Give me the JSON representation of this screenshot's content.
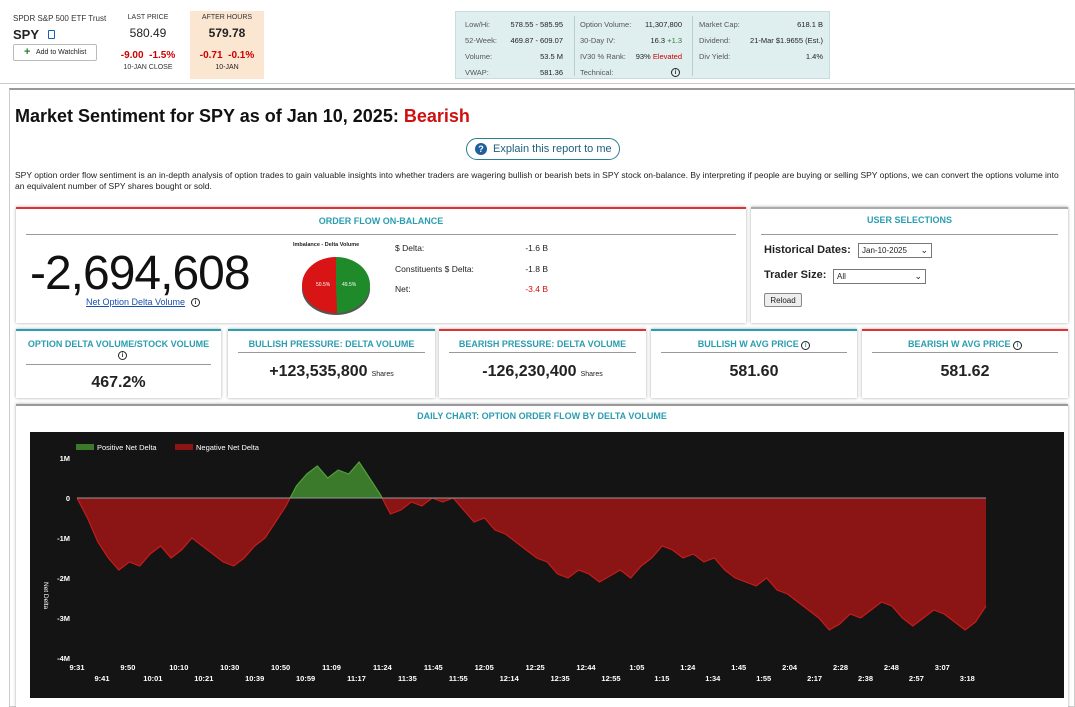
{
  "ticker": {
    "name": "SPDR S&P 500 ETF Trust",
    "symbol": "SPY",
    "watchlist": "Add to Watchlist"
  },
  "last": {
    "label": "LAST PRICE",
    "value": "580.49",
    "change": "-9.00",
    "change_pct": "-1.5%",
    "sub": "10-JAN CLOSE"
  },
  "after": {
    "label": "AFTER HOURS",
    "value": "579.78",
    "change": "-0.71",
    "change_pct": "-0.1%",
    "sub": "10-JAN"
  },
  "stats": {
    "col1": [
      {
        "k": "Low/Hi:",
        "v": "578.55 - 585.95"
      },
      {
        "k": "52-Week:",
        "v": "469.87 - 609.07"
      },
      {
        "k": "Volume:",
        "v": "53.5 M"
      },
      {
        "k": "VWAP:",
        "v": "581.36"
      }
    ],
    "col2": [
      {
        "k": "Option Volume:",
        "v": "11,307,800"
      },
      {
        "k": "30-Day IV:",
        "v": "16.3",
        "v2": "+1.3"
      },
      {
        "k": "IV30 % Rank:",
        "v": "93%",
        "v2": "Elevated"
      },
      {
        "k": "Technical:",
        "v": ""
      }
    ],
    "col3": [
      {
        "k": "Market Cap:",
        "v": "618.1 B"
      },
      {
        "k": "Dividend:",
        "v": "21-Mar $1.9655 (Est.)"
      },
      {
        "k": "Div Yield:",
        "v": "1.4%"
      }
    ]
  },
  "title": {
    "prefix": "Market Sentiment for SPY as of Jan 10, 2025:",
    "sentiment": "Bearish"
  },
  "explain": "Explain this report to me",
  "description": "SPY option order flow sentiment is an in-depth analysis of option trades to gain valuable insights into whether traders are wagering bullish or bearish bets in SPY stock on-balance. By interpreting if people are buying or selling SPY options, we can convert the options volume into an equivalent number of SPY shares bought or sold.",
  "ofb": {
    "header": "ORDER FLOW ON-BALANCE",
    "value": "-2,694,608",
    "link": "Net Option Delta Volume",
    "pie_title": "Imbalance - Delta Volume",
    "pie": {
      "red": 50.5,
      "green": 49.5,
      "red_label": "50.5%",
      "green_label": "49.5%",
      "red_color": "#d81414",
      "green_color": "#1f8a2a"
    },
    "rows": [
      {
        "k": "$ Delta:",
        "v": "-1.6 B"
      },
      {
        "k": "Constituents $ Delta:",
        "v": "-1.8 B"
      },
      {
        "k": "Net:",
        "v": "-3.4 B"
      }
    ]
  },
  "user": {
    "header": "USER SELECTIONS",
    "dates_label": "Historical Dates:",
    "dates_value": "Jan-10-2025",
    "trader_label": "Trader Size:",
    "trader_value": "All",
    "reload": "Reload"
  },
  "metrics": [
    {
      "header": "OPTION DELTA VOLUME/STOCK VOLUME",
      "value": "467.2%",
      "unit": ""
    },
    {
      "header": "BULLISH PRESSURE: DELTA VOLUME",
      "value": "+123,535,800",
      "unit": "Shares"
    },
    {
      "header": "BEARISH PRESSURE: DELTA VOLUME",
      "value": "-126,230,400",
      "unit": "Shares"
    },
    {
      "header": "BULLISH W AVG PRICE",
      "value": "581.60",
      "unit": ""
    },
    {
      "header": "BEARISH W AVG PRICE",
      "value": "581.62",
      "unit": ""
    }
  ],
  "chart_header": "DAILY CHART: OPTION ORDER FLOW BY DELTA VOLUME",
  "chart_data": {
    "type": "area",
    "title": "",
    "ylabel": "Net Delta",
    "ylim": [
      -4000000,
      1000000
    ],
    "yticks": [
      {
        "v": 1000000,
        "l": "1M"
      },
      {
        "v": 0,
        "l": "0"
      },
      {
        "v": -1000000,
        "l": "-1M"
      },
      {
        "v": -2000000,
        "l": "-2M"
      },
      {
        "v": -3000000,
        "l": "-3M"
      },
      {
        "v": -4000000,
        "l": "-4M"
      }
    ],
    "xticks_top": [
      "9:31",
      "9:50",
      "10:10",
      "10:30",
      "10:50",
      "11:09",
      "11:24",
      "11:45",
      "12:05",
      "12:25",
      "12:44",
      "1:05",
      "1:24",
      "1:45",
      "2:04",
      "2:28",
      "2:48",
      "3:07"
    ],
    "xticks_bottom": [
      "9:41",
      "10:01",
      "10:21",
      "10:39",
      "10:59",
      "11:17",
      "11:35",
      "11:55",
      "12:14",
      "12:35",
      "12:55",
      "1:15",
      "1:34",
      "1:55",
      "2:17",
      "2:38",
      "2:57",
      "3:18"
    ],
    "series": [
      {
        "name": "Positive Net Delta",
        "color": "#3a7a2a"
      },
      {
        "name": "Negative Net Delta",
        "color": "#8b1414"
      }
    ],
    "values": [
      0,
      -500000,
      -1100000,
      -1500000,
      -1800000,
      -1600000,
      -1700000,
      -1400000,
      -1200000,
      -1500000,
      -1300000,
      -1000000,
      -1200000,
      -1400000,
      -1600000,
      -1700000,
      -1500000,
      -1200000,
      -1000000,
      -600000,
      -200000,
      300000,
      600000,
      800000,
      500000,
      700000,
      600000,
      900000,
      500000,
      100000,
      -400000,
      -300000,
      -100000,
      -200000,
      0,
      -100000,
      0,
      -300000,
      -600000,
      -500000,
      -800000,
      -900000,
      -1100000,
      -1300000,
      -1500000,
      -1600000,
      -1900000,
      -2000000,
      -1800000,
      -1900000,
      -2100000,
      -1950000,
      -1800000,
      -2000000,
      -1700000,
      -1500000,
      -1200000,
      -1300000,
      -1500000,
      -1400000,
      -1600000,
      -1500000,
      -1800000,
      -2000000,
      -2100000,
      -2200000,
      -2000000,
      -2300000,
      -2400000,
      -2600000,
      -2800000,
      -3000000,
      -3300000,
      -3150000,
      -2900000,
      -3000000,
      -2800000,
      -2600000,
      -2700000,
      -3000000,
      -3200000,
      -3000000,
      -2800000,
      -2900000,
      -3100000,
      -3300000,
      -3100000,
      -2700000
    ]
  }
}
